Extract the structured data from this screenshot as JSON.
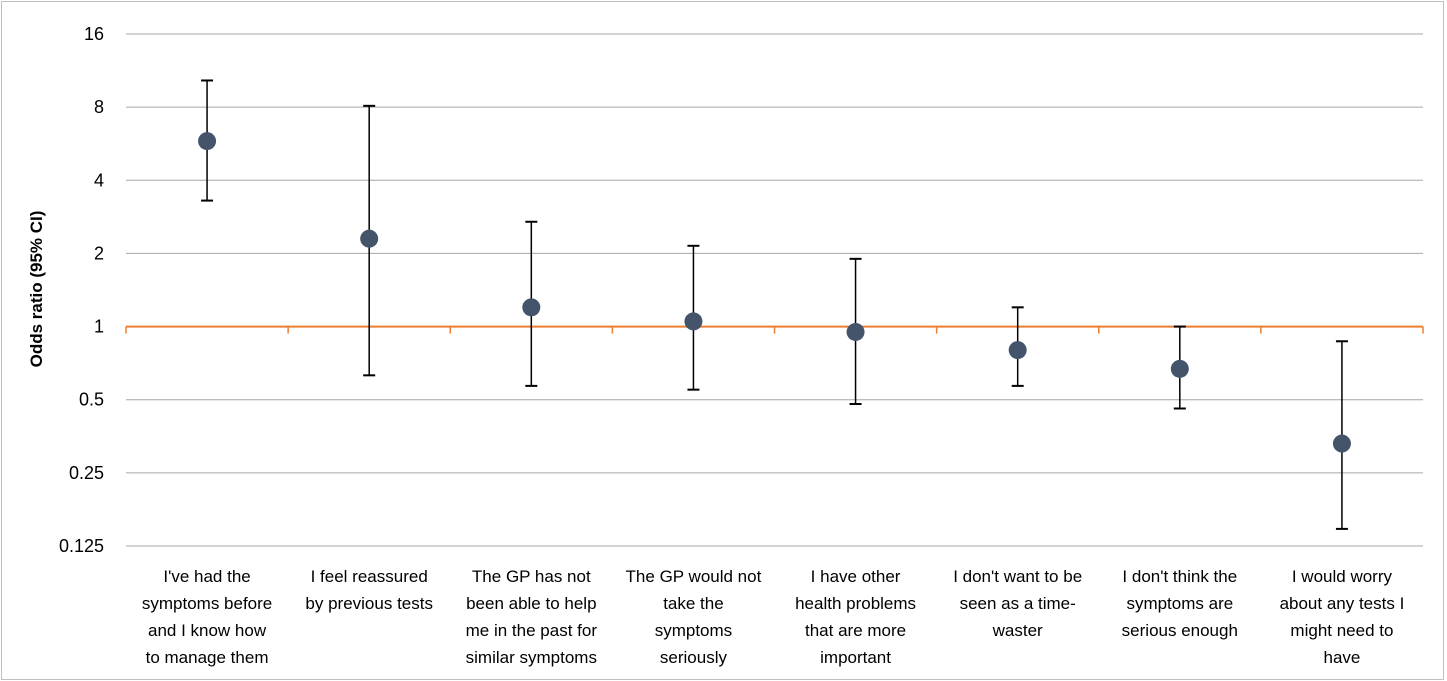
{
  "chart_data": {
    "type": "scatter",
    "title": "",
    "xlabel": "",
    "ylabel": "Odds ratio (95% CI)",
    "y_scale": "log2",
    "ylim": [
      0.125,
      16
    ],
    "y_ticks": [
      "16",
      "8",
      "4",
      "2",
      "1",
      "0.5",
      "0.25",
      "0.125"
    ],
    "y_tick_values": [
      16,
      8,
      4,
      2,
      1,
      0.5,
      0.25,
      0.125
    ],
    "grid": true,
    "reference_line": 1,
    "colors": {
      "marker": "#44546a",
      "reference": "#ed7d31",
      "grid": "#a6a6a6",
      "error_bar": "#000000"
    },
    "categories": [
      [
        "I've had the",
        "symptoms before",
        "and I know how",
        "to manage them"
      ],
      [
        "I feel reassured",
        "by previous tests"
      ],
      [
        "The GP has not",
        "been able to help",
        "me in the past for",
        "similar symptoms"
      ],
      [
        "The GP would not",
        "take the",
        "symptoms",
        "seriously"
      ],
      [
        "I have other",
        "health problems",
        "that are more",
        "important"
      ],
      [
        "I don't want to be",
        "seen as a time-",
        "waster"
      ],
      [
        "I don't think the",
        "symptoms are",
        "serious enough"
      ],
      [
        "I would worry",
        "about any tests I",
        "might need to",
        "have"
      ]
    ],
    "values": [
      5.8,
      2.3,
      1.2,
      1.05,
      0.95,
      0.8,
      0.67,
      0.33
    ],
    "ci_low": [
      3.3,
      0.63,
      0.57,
      0.55,
      0.48,
      0.57,
      0.46,
      0.147
    ],
    "ci_high": [
      10.3,
      8.1,
      2.7,
      2.15,
      1.9,
      1.2,
      1.0,
      0.87
    ]
  }
}
